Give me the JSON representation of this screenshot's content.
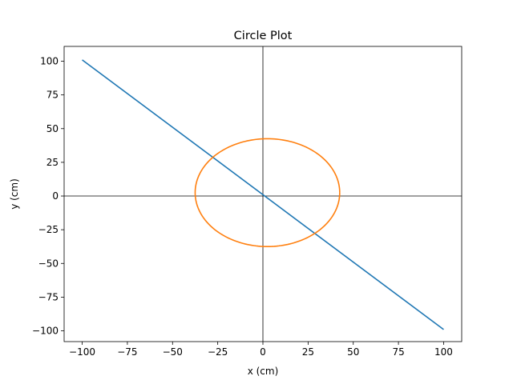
{
  "chart_data": {
    "type": "line",
    "title": "Circle Plot",
    "xlabel": "x (cm)",
    "ylabel": "y (cm)",
    "xlim": [
      -110,
      110
    ],
    "ylim": [
      -108,
      111
    ],
    "x_ticks": [
      -100,
      -75,
      -50,
      -25,
      0,
      25,
      50,
      75,
      100
    ],
    "y_ticks": [
      -100,
      -75,
      -50,
      -25,
      0,
      25,
      50,
      75,
      100
    ],
    "grid": false,
    "reference_lines": {
      "x": 0,
      "y": 0,
      "color": "#000000"
    },
    "series": [
      {
        "kind": "line",
        "color": "#1f77b4",
        "x": [
          -100,
          100
        ],
        "y": [
          101,
          -99
        ]
      },
      {
        "kind": "circle",
        "color": "#ff7f0e",
        "center": [
          2.5,
          2.5
        ],
        "radius": 40
      }
    ]
  }
}
